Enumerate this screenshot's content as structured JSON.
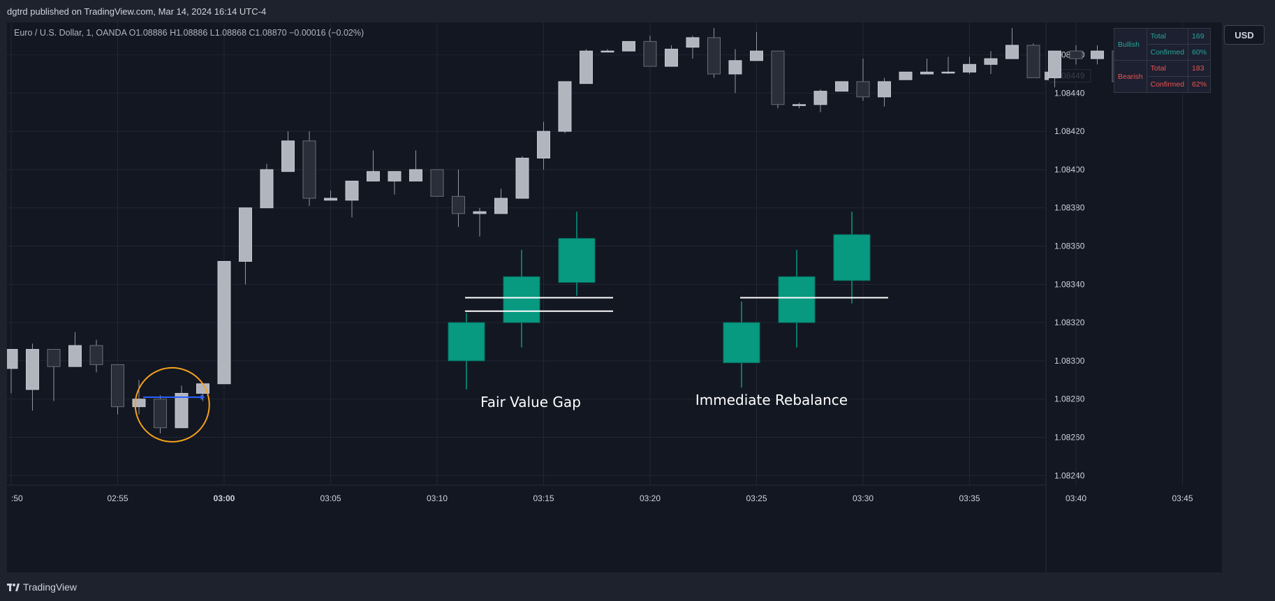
{
  "header": {
    "published": "dgtrd published on TradingView.com, Mar 14, 2024 16:14 UTC-4"
  },
  "symbol": {
    "name": "Euro / U.S. Dollar, 1, OANDA",
    "o_label": "O",
    "o": "1.08886",
    "h_label": "H",
    "h": "1.08886",
    "l_label": "L",
    "l": "1.08868",
    "c_label": "C",
    "c": "1.08870",
    "change": "−0.00016 (−0.02%)"
  },
  "currency": "USD",
  "stats": {
    "bullish_label": "Bullish",
    "bearish_label": "Bearish",
    "rows": [
      {
        "label": "Total",
        "value": "169"
      },
      {
        "label": "Confirmed",
        "value": "60%"
      },
      {
        "label": "Total",
        "value": "183"
      },
      {
        "label": "Confirmed",
        "value": "62%"
      }
    ]
  },
  "footer": {
    "brand": "TradingView"
  },
  "colors": {
    "up": "#b2b5be",
    "down": "#2a2e39",
    "wick": "#9598a1",
    "green": "#089981",
    "circle": "#f7a21b",
    "arrow": "#2962ff",
    "bull": "#26a69a",
    "bear": "#ef5350"
  },
  "chart_data": {
    "type": "candlestick",
    "title": "",
    "xlabel": "",
    "ylabel": "",
    "ylim": [
      1.08235,
      1.08477
    ],
    "y_ticks": [
      "1.08460",
      "1.08440",
      "1.08420",
      "1.08400",
      "1.08380",
      "1.08360",
      "1.08340",
      "1.08320",
      "1.08300",
      "1.08280",
      "1.08260",
      "1.08240"
    ],
    "x_ticks": [
      ":50",
      "02:55",
      "03:00",
      "03:05",
      "03:10",
      "03:15",
      "03:20",
      "03:25",
      "03:30",
      "03:35",
      "03:40",
      "03:45"
    ],
    "x_ticks_bold": [
      "03:00"
    ],
    "price_marker": "1.08449",
    "candles": [
      {
        "t": "02:50",
        "o": 1.08296,
        "h": 1.08305,
        "l": 1.08283,
        "c": 1.08306
      },
      {
        "t": "02:51",
        "o": 1.08285,
        "h": 1.08309,
        "l": 1.08274,
        "c": 1.08306
      },
      {
        "t": "02:52",
        "o": 1.08306,
        "h": 1.08306,
        "l": 1.08279,
        "c": 1.08297
      },
      {
        "t": "02:53",
        "o": 1.08297,
        "h": 1.08315,
        "l": 1.08297,
        "c": 1.08308
      },
      {
        "t": "02:54",
        "o": 1.08308,
        "h": 1.08311,
        "l": 1.08294,
        "c": 1.08298
      },
      {
        "t": "02:55",
        "o": 1.08298,
        "h": 1.08298,
        "l": 1.08272,
        "c": 1.08276
      },
      {
        "t": "02:56",
        "o": 1.08276,
        "h": 1.0829,
        "l": 1.08272,
        "c": 1.0828
      },
      {
        "t": "02:57",
        "o": 1.0828,
        "h": 1.08282,
        "l": 1.08262,
        "c": 1.08265
      },
      {
        "t": "02:58",
        "o": 1.08265,
        "h": 1.08287,
        "l": 1.08265,
        "c": 1.08283
      },
      {
        "t": "02:59",
        "o": 1.08283,
        "h": 1.08288,
        "l": 1.08279,
        "c": 1.08288
      },
      {
        "t": "03:00",
        "o": 1.08288,
        "h": 1.08352,
        "l": 1.08288,
        "c": 1.08352
      },
      {
        "t": "03:01",
        "o": 1.08352,
        "h": 1.0838,
        "l": 1.0834,
        "c": 1.0838
      },
      {
        "t": "03:02",
        "o": 1.0838,
        "h": 1.08403,
        "l": 1.0838,
        "c": 1.084
      },
      {
        "t": "03:03",
        "o": 1.08399,
        "h": 1.0842,
        "l": 1.08399,
        "c": 1.08415
      },
      {
        "t": "03:04",
        "o": 1.08415,
        "h": 1.0842,
        "l": 1.08381,
        "c": 1.08385
      },
      {
        "t": "03:05",
        "o": 1.08384,
        "h": 1.08389,
        "l": 1.08384,
        "c": 1.08385
      },
      {
        "t": "03:06",
        "o": 1.08384,
        "h": 1.08394,
        "l": 1.08375,
        "c": 1.08394
      },
      {
        "t": "03:07",
        "o": 1.08394,
        "h": 1.0841,
        "l": 1.08394,
        "c": 1.08399
      },
      {
        "t": "03:08",
        "o": 1.08394,
        "h": 1.08399,
        "l": 1.08387,
        "c": 1.08399
      },
      {
        "t": "03:09",
        "o": 1.08394,
        "h": 1.0841,
        "l": 1.08394,
        "c": 1.084
      },
      {
        "t": "03:10",
        "o": 1.084,
        "h": 1.084,
        "l": 1.08386,
        "c": 1.08386
      },
      {
        "t": "03:11",
        "o": 1.08386,
        "h": 1.084,
        "l": 1.0837,
        "c": 1.08377
      },
      {
        "t": "03:12",
        "o": 1.08377,
        "h": 1.0838,
        "l": 1.08365,
        "c": 1.08378
      },
      {
        "t": "03:13",
        "o": 1.08377,
        "h": 1.0839,
        "l": 1.08377,
        "c": 1.08385
      },
      {
        "t": "03:14",
        "o": 1.08385,
        "h": 1.08407,
        "l": 1.08385,
        "c": 1.08406
      },
      {
        "t": "03:15",
        "o": 1.08406,
        "h": 1.08425,
        "l": 1.084,
        "c": 1.0842
      },
      {
        "t": "03:16",
        "o": 1.0842,
        "h": 1.08445,
        "l": 1.08419,
        "c": 1.08446
      },
      {
        "t": "03:17",
        "o": 1.08445,
        "h": 1.08463,
        "l": 1.08445,
        "c": 1.08462
      },
      {
        "t": "03:18",
        "o": 1.08462,
        "h": 1.08463,
        "l": 1.08462,
        "c": 1.08462
      },
      {
        "t": "03:19",
        "o": 1.08462,
        "h": 1.08467,
        "l": 1.08462,
        "c": 1.08467
      },
      {
        "t": "03:20",
        "o": 1.08467,
        "h": 1.0847,
        "l": 1.08454,
        "c": 1.08454
      },
      {
        "t": "03:21",
        "o": 1.08454,
        "h": 1.08465,
        "l": 1.08454,
        "c": 1.08463
      },
      {
        "t": "03:22",
        "o": 1.08464,
        "h": 1.0847,
        "l": 1.08458,
        "c": 1.08469
      },
      {
        "t": "03:23",
        "o": 1.08469,
        "h": 1.08474,
        "l": 1.08448,
        "c": 1.0845
      },
      {
        "t": "03:24",
        "o": 1.0845,
        "h": 1.08463,
        "l": 1.0844,
        "c": 1.08457
      },
      {
        "t": "03:25",
        "o": 1.08457,
        "h": 1.08472,
        "l": 1.08457,
        "c": 1.08462
      },
      {
        "t": "03:26",
        "o": 1.08462,
        "h": 1.08462,
        "l": 1.08432,
        "c": 1.08434
      },
      {
        "t": "03:27",
        "o": 1.08434,
        "h": 1.08435,
        "l": 1.08432,
        "c": 1.08434
      },
      {
        "t": "03:28",
        "o": 1.08434,
        "h": 1.08442,
        "l": 1.0843,
        "c": 1.08441
      },
      {
        "t": "03:29",
        "o": 1.08441,
        "h": 1.08446,
        "l": 1.08441,
        "c": 1.08446
      },
      {
        "t": "03:30",
        "o": 1.08446,
        "h": 1.08458,
        "l": 1.08436,
        "c": 1.08438
      },
      {
        "t": "03:31",
        "o": 1.08438,
        "h": 1.08448,
        "l": 1.08433,
        "c": 1.08446
      },
      {
        "t": "03:32",
        "o": 1.08447,
        "h": 1.08451,
        "l": 1.08447,
        "c": 1.08451
      },
      {
        "t": "03:33",
        "o": 1.0845,
        "h": 1.08458,
        "l": 1.0845,
        "c": 1.08451
      },
      {
        "t": "03:34",
        "o": 1.08451,
        "h": 1.08459,
        "l": 1.0845,
        "c": 1.08451
      },
      {
        "t": "03:35",
        "o": 1.08451,
        "h": 1.08459,
        "l": 1.0845,
        "c": 1.08455
      },
      {
        "t": "03:36",
        "o": 1.08455,
        "h": 1.08462,
        "l": 1.0845,
        "c": 1.08458
      },
      {
        "t": "03:37",
        "o": 1.08458,
        "h": 1.08474,
        "l": 1.08458,
        "c": 1.08465
      },
      {
        "t": "03:38",
        "o": 1.08465,
        "h": 1.08466,
        "l": 1.08448,
        "c": 1.08448
      },
      {
        "t": "03:39",
        "o": 1.08448,
        "h": 1.08462,
        "l": 1.08443,
        "c": 1.08462
      },
      {
        "t": "03:40",
        "o": 1.08462,
        "h": 1.08465,
        "l": 1.08455,
        "c": 1.08458
      },
      {
        "t": "03:41",
        "o": 1.08458,
        "h": 1.08465,
        "l": 1.08455,
        "c": 1.08462
      },
      {
        "t": "03:42",
        "o": 1.08462,
        "h": 1.08466,
        "l": 1.08445,
        "c": 1.08446
      },
      {
        "t": "03:43",
        "o": 1.08449,
        "h": 1.08452,
        "l": 1.08443,
        "c": 1.08449
      },
      {
        "t": "03:44",
        "o": 1.08449,
        "h": 1.0846,
        "l": 1.08447,
        "c": 1.0846
      },
      {
        "t": "03:45",
        "o": 1.08457,
        "h": 1.0846,
        "l": 1.08452,
        "c": 1.08452
      }
    ],
    "annotations": [
      {
        "label": "Fair Value Gap",
        "candles": [
          {
            "o": 1.083,
            "h": 1.08325,
            "l": 1.08285,
            "c": 1.0832
          },
          {
            "o": 1.0832,
            "h": 1.08358,
            "l": 1.08307,
            "c": 1.08344
          },
          {
            "o": 1.08341,
            "h": 1.08378,
            "l": 1.08334,
            "c": 1.08364
          }
        ],
        "lines": [
          1.08333,
          1.08326
        ]
      },
      {
        "label": "Immediate Rebalance",
        "candles": [
          {
            "o": 1.08299,
            "h": 1.08331,
            "l": 1.08286,
            "c": 1.0832
          },
          {
            "o": 1.0832,
            "h": 1.08358,
            "l": 1.08307,
            "c": 1.08344
          },
          {
            "o": 1.08342,
            "h": 1.08378,
            "l": 1.0833,
            "c": 1.08366
          }
        ],
        "lines": [
          1.08333
        ]
      }
    ]
  }
}
